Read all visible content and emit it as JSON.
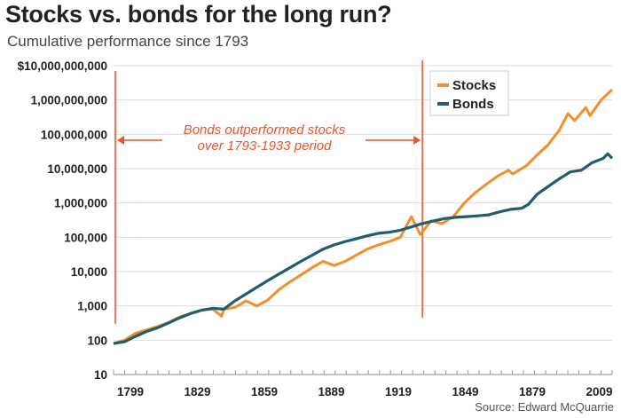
{
  "title": "Stocks vs. bonds for the long run?",
  "subtitle": "Cumulative performance since 1793",
  "source": "Source: Edward McQuarrie",
  "colors": {
    "stocks": "#f28e2b",
    "bonds": "#1f5e6e",
    "annotation": "#e4572e",
    "grid": "#dddddd"
  },
  "chart_data": {
    "type": "line",
    "y_scale": "log",
    "ylim": [
      10,
      10000000000
    ],
    "grid": "horizontal",
    "legend": "top-right",
    "ytick_labels": [
      "10",
      "100",
      "1,000",
      "10,000",
      "100,000",
      "1,000,000",
      "10,000,000",
      "100,000,000",
      "1,000,000,000",
      "$10,000,000,000"
    ],
    "xtick_labels": [
      "1799",
      "1829",
      "1859",
      "1889",
      "1919",
      "1849",
      "1879",
      "2009"
    ],
    "x_range": [
      1793,
      2019
    ],
    "annotation": {
      "lines": [
        "Bonds outperformed stocks",
        "over 1793-1933 period"
      ],
      "period": [
        1793,
        1933
      ]
    },
    "series": [
      {
        "name": "Stocks",
        "x": [
          1793,
          1798,
          1803,
          1808,
          1813,
          1818,
          1823,
          1828,
          1833,
          1838,
          1842,
          1843,
          1848,
          1853,
          1858,
          1863,
          1868,
          1873,
          1878,
          1883,
          1888,
          1893,
          1898,
          1903,
          1908,
          1913,
          1918,
          1923,
          1928,
          1929,
          1932,
          1937,
          1942,
          1947,
          1952,
          1957,
          1962,
          1967,
          1972,
          1974,
          1980,
          1985,
          1990,
          1995,
          1999,
          2002,
          2007,
          2009,
          2014,
          2019
        ],
        "y": [
          80,
          100,
          160,
          200,
          250,
          330,
          480,
          600,
          760,
          800,
          500,
          800,
          900,
          1400,
          1000,
          1500,
          3000,
          5000,
          8000,
          13000,
          20000,
          15000,
          20000,
          30000,
          45000,
          60000,
          75000,
          100000,
          400000,
          300000,
          120000,
          300000,
          250000,
          400000,
          1000000,
          2000000,
          3500000,
          6000000,
          9000000,
          7000000,
          12000000,
          25000000,
          50000000,
          130000000,
          400000000,
          250000000,
          600000000,
          350000000,
          1000000000,
          2000000000
        ]
      },
      {
        "name": "Bonds",
        "x": [
          1793,
          1798,
          1803,
          1808,
          1813,
          1818,
          1823,
          1828,
          1833,
          1838,
          1843,
          1848,
          1853,
          1858,
          1863,
          1868,
          1873,
          1878,
          1883,
          1888,
          1893,
          1898,
          1903,
          1908,
          1913,
          1918,
          1923,
          1928,
          1933,
          1938,
          1943,
          1948,
          1953,
          1958,
          1963,
          1968,
          1973,
          1978,
          1981,
          1985,
          1990,
          1995,
          2000,
          2005,
          2010,
          2015,
          2017,
          2019
        ],
        "y": [
          80,
          90,
          130,
          180,
          230,
          320,
          450,
          600,
          750,
          850,
          800,
          1400,
          2200,
          3500,
          5500,
          8500,
          13000,
          20000,
          30000,
          45000,
          60000,
          75000,
          90000,
          110000,
          130000,
          140000,
          160000,
          200000,
          250000,
          300000,
          350000,
          380000,
          400000,
          420000,
          450000,
          550000,
          650000,
          700000,
          900000,
          1800000,
          3000000,
          5000000,
          8000000,
          9000000,
          15000000,
          20000000,
          27000000,
          20000000
        ]
      }
    ]
  }
}
